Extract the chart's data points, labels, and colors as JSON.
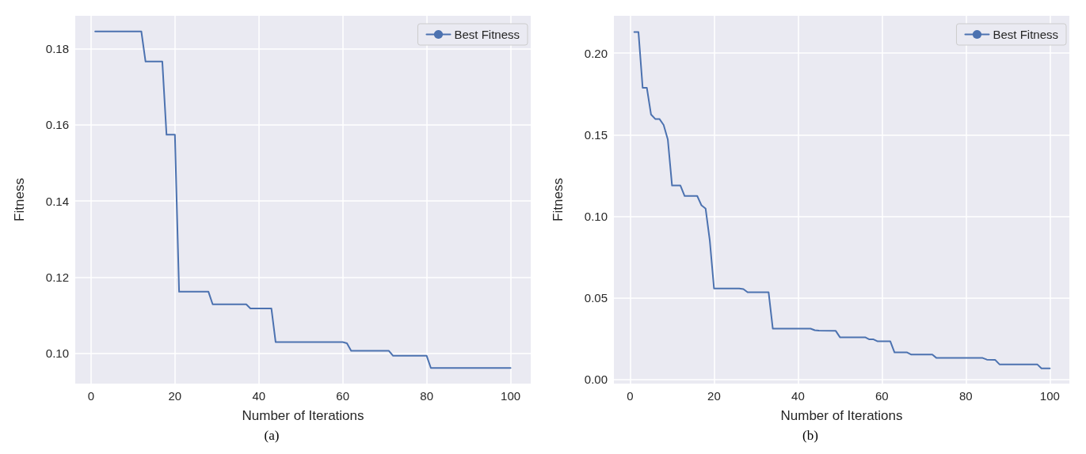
{
  "chart_data": [
    {
      "type": "line",
      "xlabel": "Number of Iterations",
      "ylabel": "Fitness",
      "annotations": [
        "(a)"
      ],
      "legend": "top right",
      "grid": true,
      "marker": "none",
      "line_style": "solid",
      "xlim": [
        -3.75,
        104.8
      ],
      "xticks": [
        0,
        20,
        40,
        60,
        80,
        100
      ],
      "ylim": [
        0.0921,
        0.1886
      ],
      "yticks": [
        {
          "value": 0.1,
          "label": "0.10"
        },
        {
          "value": 0.12,
          "label": "0.12"
        },
        {
          "value": 0.14,
          "label": "0.14"
        },
        {
          "value": 0.16,
          "label": "0.16"
        },
        {
          "value": 0.18,
          "label": "0.18"
        }
      ],
      "series": [
        {
          "name": "Best Fitness",
          "color": "#4c72b0",
          "x": [
            1,
            12,
            13,
            17,
            18,
            20,
            21,
            28,
            29,
            37,
            38,
            43,
            44,
            60,
            61,
            62,
            71,
            72,
            80,
            81,
            100
          ],
          "values": [
            0.1845,
            0.1845,
            0.1766,
            0.1766,
            0.1574,
            0.1574,
            0.1162,
            0.1162,
            0.1129,
            0.1129,
            0.1118,
            0.1118,
            0.103,
            0.103,
            0.1027,
            0.1007,
            0.1007,
            0.0994,
            0.0994,
            0.0962,
            0.0962
          ]
        }
      ]
    },
    {
      "type": "line",
      "xlabel": "Number of Iterations",
      "ylabel": "Fitness",
      "annotations": [
        "(b)"
      ],
      "legend": "top right",
      "grid": true,
      "marker": "none",
      "line_style": "solid",
      "xlim": [
        -3.85,
        104.65
      ],
      "xticks": [
        0,
        20,
        40,
        60,
        80,
        100
      ],
      "ylim": [
        -0.0025,
        0.2229
      ],
      "yticks": [
        {
          "value": 0,
          "label": "0.00"
        },
        {
          "value": 0.05,
          "label": "0.05"
        },
        {
          "value": 0.1,
          "label": "0.10"
        },
        {
          "value": 0.15,
          "label": "0.15"
        },
        {
          "value": 0.2,
          "label": "0.20"
        }
      ],
      "series": [
        {
          "name": "Best Fitness",
          "color": "#4c72b0",
          "x": [
            1,
            2,
            3,
            4,
            5,
            6,
            7,
            8,
            9,
            10,
            12,
            13,
            16,
            17,
            18,
            19,
            20,
            26,
            27,
            28,
            33,
            34,
            43,
            44,
            45,
            49,
            50,
            56,
            57,
            58,
            59,
            62,
            63,
            66,
            67,
            72,
            73,
            84,
            85,
            87,
            88,
            97,
            98,
            100
          ],
          "values": [
            0.213,
            0.213,
            0.1788,
            0.1788,
            0.1624,
            0.1597,
            0.1597,
            0.156,
            0.147,
            0.1189,
            0.1189,
            0.1125,
            0.1125,
            0.1068,
            0.1047,
            0.085,
            0.0558,
            0.0558,
            0.0554,
            0.0535,
            0.0535,
            0.0312,
            0.0312,
            0.0302,
            0.03,
            0.0298,
            0.0259,
            0.0259,
            0.0246,
            0.0246,
            0.0234,
            0.0234,
            0.0166,
            0.0166,
            0.0153,
            0.0153,
            0.0132,
            0.0132,
            0.0122,
            0.012,
            0.0093,
            0.0093,
            0.0068,
            0.0068
          ]
        }
      ]
    }
  ]
}
